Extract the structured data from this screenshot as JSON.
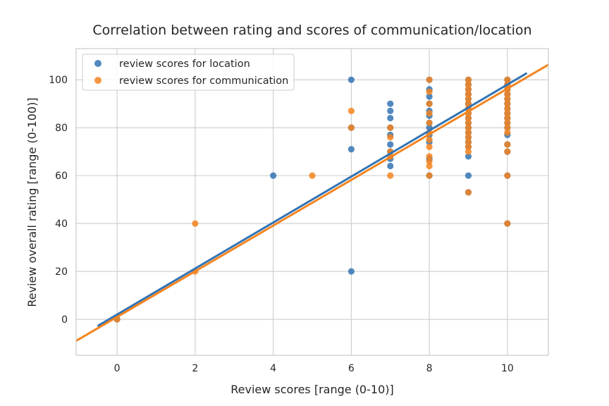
{
  "chart_data": {
    "type": "scatter",
    "title": "Correlation between rating and scores of communication/location",
    "xlabel": "Review scores [range (0-10)]",
    "ylabel": "Review overall rating [range (0-100)]",
    "xlim": [
      -1.05,
      11.05
    ],
    "ylim": [
      -15,
      113
    ],
    "xticks": [
      0,
      2,
      4,
      6,
      8,
      10
    ],
    "yticks": [
      0,
      20,
      40,
      60,
      80,
      100
    ],
    "grid": true,
    "legend_position": "top-left",
    "series": [
      {
        "name": "review scores for location",
        "color": "#3274b4",
        "points": [
          [
            0,
            0
          ],
          [
            4,
            60
          ],
          [
            6,
            100
          ],
          [
            6,
            80
          ],
          [
            6,
            71
          ],
          [
            6,
            20
          ],
          [
            7,
            90
          ],
          [
            7,
            87
          ],
          [
            7,
            84
          ],
          [
            7,
            80
          ],
          [
            7,
            77
          ],
          [
            7,
            73
          ],
          [
            7,
            70
          ],
          [
            7,
            67
          ],
          [
            7,
            64
          ],
          [
            8,
            100
          ],
          [
            8,
            96
          ],
          [
            8,
            93
          ],
          [
            8,
            90
          ],
          [
            8,
            87
          ],
          [
            8,
            85
          ],
          [
            8,
            82
          ],
          [
            8,
            80
          ],
          [
            8,
            77
          ],
          [
            8,
            74
          ],
          [
            8,
            67
          ],
          [
            8,
            60
          ],
          [
            9,
            100
          ],
          [
            9,
            98
          ],
          [
            9,
            96
          ],
          [
            9,
            94
          ],
          [
            9,
            92
          ],
          [
            9,
            90
          ],
          [
            9,
            88
          ],
          [
            9,
            86
          ],
          [
            9,
            84
          ],
          [
            9,
            82
          ],
          [
            9,
            80
          ],
          [
            9,
            78
          ],
          [
            9,
            76
          ],
          [
            9,
            74
          ],
          [
            9,
            72
          ],
          [
            9,
            68
          ],
          [
            9,
            60
          ],
          [
            9,
            53
          ],
          [
            10,
            100
          ],
          [
            10,
            98
          ],
          [
            10,
            96
          ],
          [
            10,
            94
          ],
          [
            10,
            92
          ],
          [
            10,
            90
          ],
          [
            10,
            88
          ],
          [
            10,
            86
          ],
          [
            10,
            84
          ],
          [
            10,
            82
          ],
          [
            10,
            80
          ],
          [
            10,
            77
          ],
          [
            10,
            73
          ],
          [
            10,
            70
          ],
          [
            10,
            60
          ],
          [
            10,
            40
          ]
        ],
        "regression": {
          "x_start": -0.5,
          "x_end": 10.5,
          "y_start": -2.8,
          "y_end": 102.8
        }
      },
      {
        "name": "review scores for communication",
        "color": "#f5841f",
        "points": [
          [
            0,
            0
          ],
          [
            2,
            40
          ],
          [
            2,
            20
          ],
          [
            5,
            60
          ],
          [
            6,
            87
          ],
          [
            6,
            80
          ],
          [
            7,
            80
          ],
          [
            7,
            76
          ],
          [
            7,
            70
          ],
          [
            7,
            68
          ],
          [
            7,
            60
          ],
          [
            8,
            100
          ],
          [
            8,
            95
          ],
          [
            8,
            90
          ],
          [
            8,
            86
          ],
          [
            8,
            82
          ],
          [
            8,
            78
          ],
          [
            8,
            75
          ],
          [
            8,
            72
          ],
          [
            8,
            68
          ],
          [
            8,
            66
          ],
          [
            8,
            64
          ],
          [
            8,
            60
          ],
          [
            9,
            100
          ],
          [
            9,
            98
          ],
          [
            9,
            96
          ],
          [
            9,
            94
          ],
          [
            9,
            92
          ],
          [
            9,
            90
          ],
          [
            9,
            88
          ],
          [
            9,
            86
          ],
          [
            9,
            84
          ],
          [
            9,
            82
          ],
          [
            9,
            80
          ],
          [
            9,
            78
          ],
          [
            9,
            76
          ],
          [
            9,
            74
          ],
          [
            9,
            72
          ],
          [
            9,
            70
          ],
          [
            9,
            53
          ],
          [
            10,
            100
          ],
          [
            10,
            98
          ],
          [
            10,
            96
          ],
          [
            10,
            94
          ],
          [
            10,
            92
          ],
          [
            10,
            90
          ],
          [
            10,
            88
          ],
          [
            10,
            86
          ],
          [
            10,
            84
          ],
          [
            10,
            82
          ],
          [
            10,
            80
          ],
          [
            10,
            78
          ],
          [
            10,
            73
          ],
          [
            10,
            70
          ],
          [
            10,
            60
          ],
          [
            10,
            40
          ]
        ],
        "regression": {
          "x_start": -1.05,
          "x_end": 11.05,
          "y_start": -9,
          "y_end": 106.3
        }
      }
    ]
  }
}
